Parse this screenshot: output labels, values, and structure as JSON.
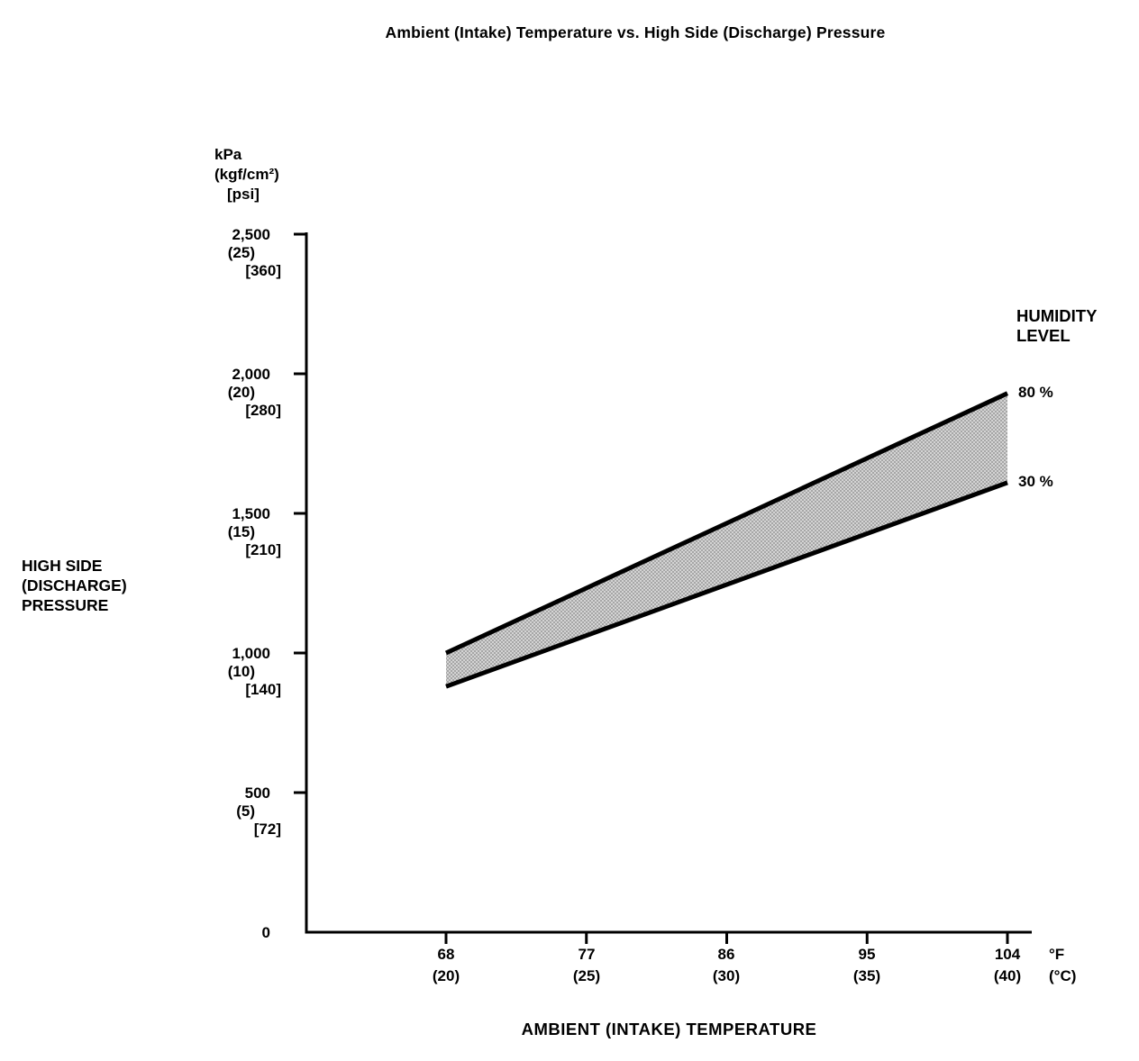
{
  "title": "Ambient (Intake) Temperature vs. High Side (Discharge) Pressure",
  "y_axis": {
    "unit_lines": [
      "kPa",
      "(kgf/cm²)",
      "[psi]"
    ],
    "ticks": [
      {
        "kpa": "2,500",
        "kgf": "(25)",
        "psi": "[360]"
      },
      {
        "kpa": "2,000",
        "kgf": "(20)",
        "psi": "[280]"
      },
      {
        "kpa": "1,500",
        "kgf": "(15)",
        "psi": "[210]"
      },
      {
        "kpa": "1,000",
        "kgf": "(10)",
        "psi": "[140]"
      },
      {
        "kpa": "500",
        "kgf": "(5)",
        "psi": "[72]"
      },
      {
        "kpa": "0"
      }
    ],
    "side_label_lines": [
      "HIGH SIDE",
      "(DISCHARGE)",
      "PRESSURE"
    ]
  },
  "x_axis": {
    "ticks": [
      {
        "f": "68",
        "c": "(20)"
      },
      {
        "f": "77",
        "c": "(25)"
      },
      {
        "f": "86",
        "c": "(30)"
      },
      {
        "f": "95",
        "c": "(35)"
      },
      {
        "f": "104",
        "c": "(40)"
      }
    ],
    "unit_f": "°F",
    "unit_c": "(°C)",
    "label": "AMBIENT (INTAKE) TEMPERATURE"
  },
  "legend": {
    "title_lines": [
      "HUMIDITY",
      "LEVEL"
    ],
    "series_labels": {
      "high": "80 %",
      "low": "30 %"
    }
  },
  "chart_data": {
    "type": "area",
    "title": "Ambient (Intake) Temperature vs. High Side (Discharge) Pressure",
    "xlabel": "AMBIENT (INTAKE) TEMPERATURE",
    "ylabel": "HIGH SIDE (DISCHARGE) PRESSURE",
    "x_unit": "°F (°C)",
    "y_unit": "kPa (kgf/cm²) [psi]",
    "x": [
      68,
      104
    ],
    "x_celsius": [
      20,
      40
    ],
    "series": [
      {
        "name": "80 %",
        "values_kpa": [
          1000,
          1930
        ]
      },
      {
        "name": "30 %",
        "values_kpa": [
          880,
          1610
        ]
      }
    ],
    "band": "stippled gray area filled between 30 % and 80 % humidity lines",
    "ylim": [
      0,
      2500
    ],
    "y_ticks_kpa": [
      0,
      500,
      1000,
      1500,
      2000,
      2500
    ],
    "y_ticks_kgf": [
      0,
      5,
      10,
      15,
      20,
      25
    ],
    "y_ticks_psi": [
      0,
      72,
      140,
      210,
      280,
      360
    ],
    "x_ticks_f": [
      68,
      77,
      86,
      95,
      104
    ],
    "x_ticks_c": [
      20,
      25,
      30,
      35,
      40
    ],
    "grid": false,
    "legend_position": "right"
  },
  "colors": {
    "line": "#000000",
    "band_light": "#d4d4d4",
    "band_dot": "#979797",
    "text": "#000000",
    "background": "#ffffff"
  }
}
